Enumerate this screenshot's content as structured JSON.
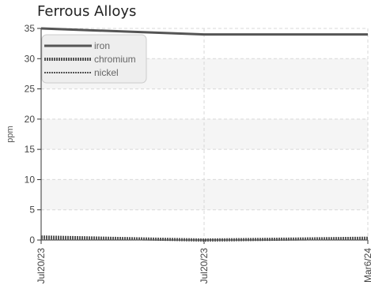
{
  "chart_data": {
    "type": "line",
    "title": "Ferrous Alloys",
    "ylabel": "ppm",
    "xlabel": "",
    "ylim": [
      0,
      35
    ],
    "yticks": [
      0,
      5,
      10,
      15,
      20,
      25,
      30,
      35
    ],
    "x": [
      "Jul20/23",
      "Jul20/23",
      "Mar6/24"
    ],
    "grid": true,
    "legend_position": "top-left",
    "series": [
      {
        "name": "iron",
        "values": [
          35,
          34,
          34
        ],
        "color": "#555555",
        "style": "solid"
      },
      {
        "name": "chromium",
        "values": [
          0.5,
          0,
          0.3
        ],
        "color": "#555555",
        "style": "dotted"
      },
      {
        "name": "nickel",
        "values": [
          0.1,
          0.1,
          0.1
        ],
        "color": "#555555",
        "style": "dashed"
      }
    ]
  }
}
